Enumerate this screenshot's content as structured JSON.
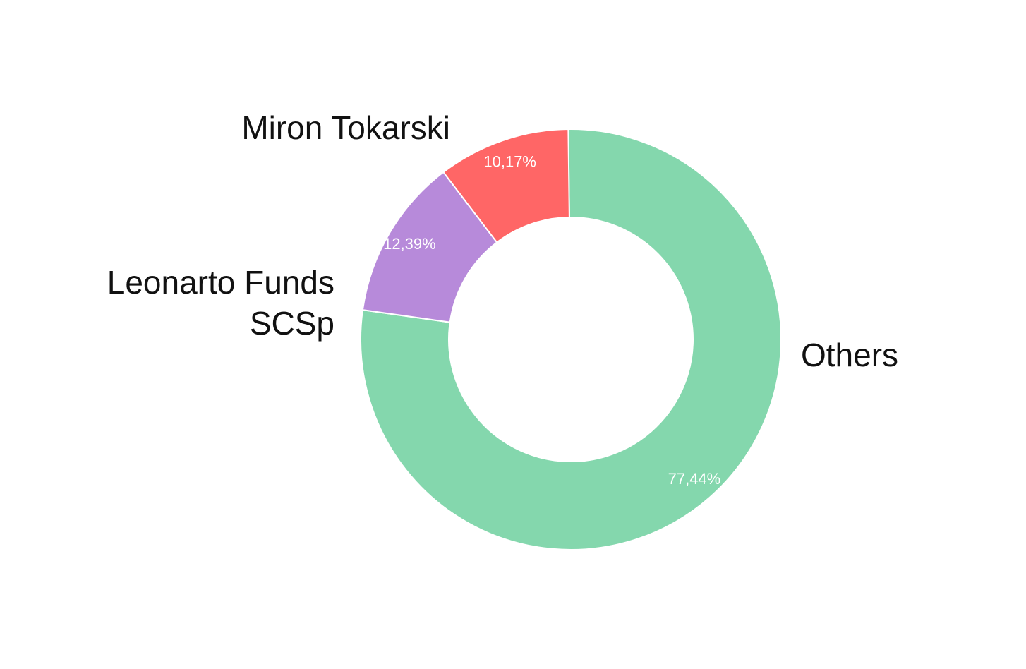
{
  "chart_data": {
    "type": "pie",
    "variant": "donut",
    "slices": [
      {
        "label": [
          "Others"
        ],
        "value": 77.44,
        "pct_label": "77,44%",
        "color": "#84D7AD"
      },
      {
        "label": [
          "Leonarto Funds",
          "SCSp"
        ],
        "value": 12.39,
        "pct_label": "12,39%",
        "color": "#B78ADA"
      },
      {
        "label": [
          "Miron Tokarski"
        ],
        "value": 10.17,
        "pct_label": "10,17%",
        "color": "#FF6666"
      }
    ],
    "legend": "none"
  }
}
